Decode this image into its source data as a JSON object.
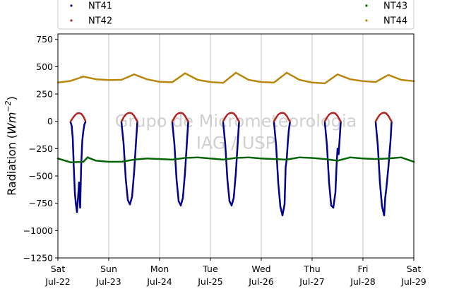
{
  "chart_data": {
    "type": "scatter",
    "ylabel": "Radiation (Wm⁻²)",
    "ylabel_base": "Radiation (",
    "ylabel_unit": "Wm",
    "ylabel_exp": "−2",
    "ylabel_close": ")",
    "ylim": [
      -1250,
      800
    ],
    "yticks": [
      -1250,
      -1000,
      -750,
      -500,
      -250,
      0,
      250,
      500,
      750
    ],
    "ytick_labels": [
      "−1250",
      "−1000",
      "−750",
      "−500",
      "−250",
      "0",
      "250",
      "500",
      "750"
    ],
    "xlim": [
      "2023-07-22",
      "2023-07-29"
    ],
    "xticks": [
      {
        "day": "Sat",
        "date": "Jul-22"
      },
      {
        "day": "Sun",
        "date": "Jul-23"
      },
      {
        "day": "Mon",
        "date": "Jul-24"
      },
      {
        "day": "Tue",
        "date": "Jul-25"
      },
      {
        "day": "Wed",
        "date": "Jul-26"
      },
      {
        "day": "Thu",
        "date": "Jul-27"
      },
      {
        "day": "Fri",
        "date": "Jul-28"
      },
      {
        "day": "Sat",
        "date": "Jul-29"
      }
    ],
    "grid": "vertical",
    "legend_position": "top",
    "watermark": [
      "Grupo de Micrometeorologia",
      "IAG / USP"
    ],
    "series": [
      {
        "name": "NT41",
        "color": "#00008b",
        "points": [
          [
            "2023-07-22T06:00",
            -10
          ],
          [
            "2023-07-22T06:30",
            -40
          ],
          [
            "2023-07-22T07:00",
            -150
          ],
          [
            "2023-07-22T07:30",
            -420
          ],
          [
            "2023-07-22T08:00",
            -650
          ],
          [
            "2023-07-22T08:30",
            -760
          ],
          [
            "2023-07-22T09:00",
            -830
          ],
          [
            "2023-07-22T09:30",
            -700
          ],
          [
            "2023-07-22T10:00",
            -560
          ],
          [
            "2023-07-22T10:30",
            -790
          ],
          [
            "2023-07-22T11:00",
            -400
          ],
          [
            "2023-07-22T11:30",
            -180
          ],
          [
            "2023-07-22T12:00",
            -90
          ],
          [
            "2023-07-22T12:30",
            -30
          ],
          [
            "2023-07-22T13:00",
            -5
          ],
          [
            "2023-07-23T06:00",
            -10
          ],
          [
            "2023-07-23T07:00",
            -200
          ],
          [
            "2023-07-23T08:00",
            -520
          ],
          [
            "2023-07-23T09:00",
            -720
          ],
          [
            "2023-07-23T10:00",
            -760
          ],
          [
            "2023-07-23T11:00",
            -690
          ],
          [
            "2023-07-23T12:00",
            -460
          ],
          [
            "2023-07-23T13:00",
            -150
          ],
          [
            "2023-07-23T13:30",
            -10
          ],
          [
            "2023-07-24T06:00",
            -10
          ],
          [
            "2023-07-24T07:00",
            -210
          ],
          [
            "2023-07-24T08:00",
            -530
          ],
          [
            "2023-07-24T09:00",
            -730
          ],
          [
            "2023-07-24T10:00",
            -770
          ],
          [
            "2023-07-24T11:00",
            -700
          ],
          [
            "2023-07-24T12:00",
            -470
          ],
          [
            "2023-07-24T13:00",
            -160
          ],
          [
            "2023-07-24T13:30",
            -10
          ],
          [
            "2023-07-25T06:00",
            -10
          ],
          [
            "2023-07-25T07:00",
            -210
          ],
          [
            "2023-07-25T08:00",
            -530
          ],
          [
            "2023-07-25T09:00",
            -730
          ],
          [
            "2023-07-25T10:00",
            -770
          ],
          [
            "2023-07-25T11:00",
            -700
          ],
          [
            "2023-07-25T12:00",
            -470
          ],
          [
            "2023-07-25T13:00",
            -160
          ],
          [
            "2023-07-25T13:30",
            -10
          ],
          [
            "2023-07-26T06:00",
            -10
          ],
          [
            "2023-07-26T07:00",
            -220
          ],
          [
            "2023-07-26T08:00",
            -560
          ],
          [
            "2023-07-26T09:00",
            -780
          ],
          [
            "2023-07-26T10:00",
            -860
          ],
          [
            "2023-07-26T11:00",
            -760
          ],
          [
            "2023-07-26T11:30",
            -420
          ],
          [
            "2023-07-26T12:00",
            -350
          ],
          [
            "2023-07-26T12:30",
            -200
          ],
          [
            "2023-07-26T13:00",
            -80
          ],
          [
            "2023-07-26T13:30",
            -10
          ],
          [
            "2023-07-27T06:00",
            -10
          ],
          [
            "2023-07-27T07:00",
            -220
          ],
          [
            "2023-07-27T08:00",
            -560
          ],
          [
            "2023-07-27T09:00",
            -770
          ],
          [
            "2023-07-27T10:00",
            -790
          ],
          [
            "2023-07-27T11:00",
            -650
          ],
          [
            "2023-07-27T11:30",
            -420
          ],
          [
            "2023-07-27T12:00",
            -250
          ],
          [
            "2023-07-27T12:30",
            -300
          ],
          [
            "2023-07-27T13:00",
            -160
          ],
          [
            "2023-07-27T13:30",
            -10
          ],
          [
            "2023-07-28T06:00",
            -10
          ],
          [
            "2023-07-28T07:00",
            -220
          ],
          [
            "2023-07-28T08:00",
            -560
          ],
          [
            "2023-07-28T09:00",
            -780
          ],
          [
            "2023-07-28T10:00",
            -860
          ],
          [
            "2023-07-28T10:30",
            -700
          ],
          [
            "2023-07-28T11:00",
            -620
          ],
          [
            "2023-07-28T12:00",
            -420
          ],
          [
            "2023-07-28T13:00",
            -180
          ],
          [
            "2023-07-28T13:30",
            -10
          ]
        ]
      },
      {
        "name": "NT42",
        "color": "#b22222",
        "points": [
          [
            "2023-07-22T06:00",
            0
          ],
          [
            "2023-07-22T07:00",
            30
          ],
          [
            "2023-07-22T08:00",
            55
          ],
          [
            "2023-07-22T09:00",
            72
          ],
          [
            "2023-07-22T10:00",
            75
          ],
          [
            "2023-07-22T11:00",
            70
          ],
          [
            "2023-07-22T12:00",
            45
          ],
          [
            "2023-07-22T13:00",
            5
          ],
          [
            "2023-07-23T06:00",
            0
          ],
          [
            "2023-07-23T07:00",
            35
          ],
          [
            "2023-07-23T08:00",
            62
          ],
          [
            "2023-07-23T09:00",
            75
          ],
          [
            "2023-07-23T10:00",
            78
          ],
          [
            "2023-07-23T11:00",
            72
          ],
          [
            "2023-07-23T12:00",
            50
          ],
          [
            "2023-07-23T13:00",
            15
          ],
          [
            "2023-07-23T13:30",
            0
          ],
          [
            "2023-07-24T06:00",
            0
          ],
          [
            "2023-07-24T07:00",
            35
          ],
          [
            "2023-07-24T08:00",
            62
          ],
          [
            "2023-07-24T09:00",
            75
          ],
          [
            "2023-07-24T10:00",
            78
          ],
          [
            "2023-07-24T11:00",
            72
          ],
          [
            "2023-07-24T12:00",
            50
          ],
          [
            "2023-07-24T13:00",
            15
          ],
          [
            "2023-07-24T13:30",
            0
          ],
          [
            "2023-07-25T06:00",
            0
          ],
          [
            "2023-07-25T07:00",
            35
          ],
          [
            "2023-07-25T08:00",
            62
          ],
          [
            "2023-07-25T09:00",
            75
          ],
          [
            "2023-07-25T10:00",
            78
          ],
          [
            "2023-07-25T11:00",
            72
          ],
          [
            "2023-07-25T12:00",
            50
          ],
          [
            "2023-07-25T13:00",
            15
          ],
          [
            "2023-07-25T13:30",
            0
          ],
          [
            "2023-07-26T06:00",
            0
          ],
          [
            "2023-07-26T07:00",
            35
          ],
          [
            "2023-07-26T08:00",
            62
          ],
          [
            "2023-07-26T09:00",
            75
          ],
          [
            "2023-07-26T10:00",
            78
          ],
          [
            "2023-07-26T11:00",
            72
          ],
          [
            "2023-07-26T12:00",
            50
          ],
          [
            "2023-07-26T13:00",
            15
          ],
          [
            "2023-07-26T13:30",
            0
          ],
          [
            "2023-07-27T06:00",
            0
          ],
          [
            "2023-07-27T07:00",
            35
          ],
          [
            "2023-07-27T08:00",
            62
          ],
          [
            "2023-07-27T09:00",
            75
          ],
          [
            "2023-07-27T10:00",
            78
          ],
          [
            "2023-07-27T11:00",
            72
          ],
          [
            "2023-07-27T12:00",
            50
          ],
          [
            "2023-07-27T13:00",
            15
          ],
          [
            "2023-07-27T13:30",
            0
          ],
          [
            "2023-07-28T06:00",
            0
          ],
          [
            "2023-07-28T07:00",
            35
          ],
          [
            "2023-07-28T08:00",
            62
          ],
          [
            "2023-07-28T09:00",
            75
          ],
          [
            "2023-07-28T10:00",
            80
          ],
          [
            "2023-07-28T11:00",
            72
          ],
          [
            "2023-07-28T12:00",
            50
          ],
          [
            "2023-07-28T13:00",
            15
          ],
          [
            "2023-07-28T13:30",
            0
          ]
        ]
      },
      {
        "name": "NT43",
        "color": "#006400",
        "points": [
          [
            "2023-07-22T00:00",
            -340
          ],
          [
            "2023-07-22T06:00",
            -375
          ],
          [
            "2023-07-22T12:00",
            -370
          ],
          [
            "2023-07-22T14:00",
            -330
          ],
          [
            "2023-07-22T18:00",
            -360
          ],
          [
            "2023-07-23T00:00",
            -370
          ],
          [
            "2023-07-23T06:00",
            -370
          ],
          [
            "2023-07-23T12:00",
            -350
          ],
          [
            "2023-07-23T18:00",
            -340
          ],
          [
            "2023-07-24T00:00",
            -345
          ],
          [
            "2023-07-24T06:00",
            -350
          ],
          [
            "2023-07-24T12:00",
            -335
          ],
          [
            "2023-07-24T18:00",
            -330
          ],
          [
            "2023-07-25T00:00",
            -340
          ],
          [
            "2023-07-25T06:00",
            -350
          ],
          [
            "2023-07-25T12:00",
            -335
          ],
          [
            "2023-07-25T18:00",
            -330
          ],
          [
            "2023-07-26T00:00",
            -340
          ],
          [
            "2023-07-26T06:00",
            -345
          ],
          [
            "2023-07-26T12:00",
            -350
          ],
          [
            "2023-07-26T18:00",
            -330
          ],
          [
            "2023-07-27T00:00",
            -335
          ],
          [
            "2023-07-27T06:00",
            -345
          ],
          [
            "2023-07-27T12:00",
            -360
          ],
          [
            "2023-07-27T18:00",
            -330
          ],
          [
            "2023-07-28T00:00",
            -340
          ],
          [
            "2023-07-28T06:00",
            -345
          ],
          [
            "2023-07-28T12:00",
            -340
          ],
          [
            "2023-07-28T18:00",
            -330
          ],
          [
            "2023-07-29T00:00",
            -370
          ]
        ]
      },
      {
        "name": "NT44",
        "color": "#b8860b",
        "points": [
          [
            "2023-07-22T00:00",
            355
          ],
          [
            "2023-07-22T06:00",
            370
          ],
          [
            "2023-07-22T12:00",
            410
          ],
          [
            "2023-07-22T18:00",
            385
          ],
          [
            "2023-07-23T00:00",
            378
          ],
          [
            "2023-07-23T06:00",
            380
          ],
          [
            "2023-07-23T12:00",
            430
          ],
          [
            "2023-07-23T18:00",
            385
          ],
          [
            "2023-07-24T00:00",
            362
          ],
          [
            "2023-07-24T06:00",
            358
          ],
          [
            "2023-07-24T12:00",
            440
          ],
          [
            "2023-07-24T18:00",
            380
          ],
          [
            "2023-07-25T00:00",
            360
          ],
          [
            "2023-07-25T06:00",
            352
          ],
          [
            "2023-07-25T12:00",
            445
          ],
          [
            "2023-07-25T18:00",
            380
          ],
          [
            "2023-07-26T00:00",
            360
          ],
          [
            "2023-07-26T06:00",
            355
          ],
          [
            "2023-07-26T12:00",
            445
          ],
          [
            "2023-07-26T18:00",
            380
          ],
          [
            "2023-07-27T00:00",
            355
          ],
          [
            "2023-07-27T06:00",
            348
          ],
          [
            "2023-07-27T12:00",
            430
          ],
          [
            "2023-07-27T18:00",
            385
          ],
          [
            "2023-07-28T00:00",
            368
          ],
          [
            "2023-07-28T06:00",
            360
          ],
          [
            "2023-07-28T12:00",
            425
          ],
          [
            "2023-07-28T18:00",
            380
          ],
          [
            "2023-07-29T00:00",
            368
          ]
        ]
      }
    ]
  }
}
